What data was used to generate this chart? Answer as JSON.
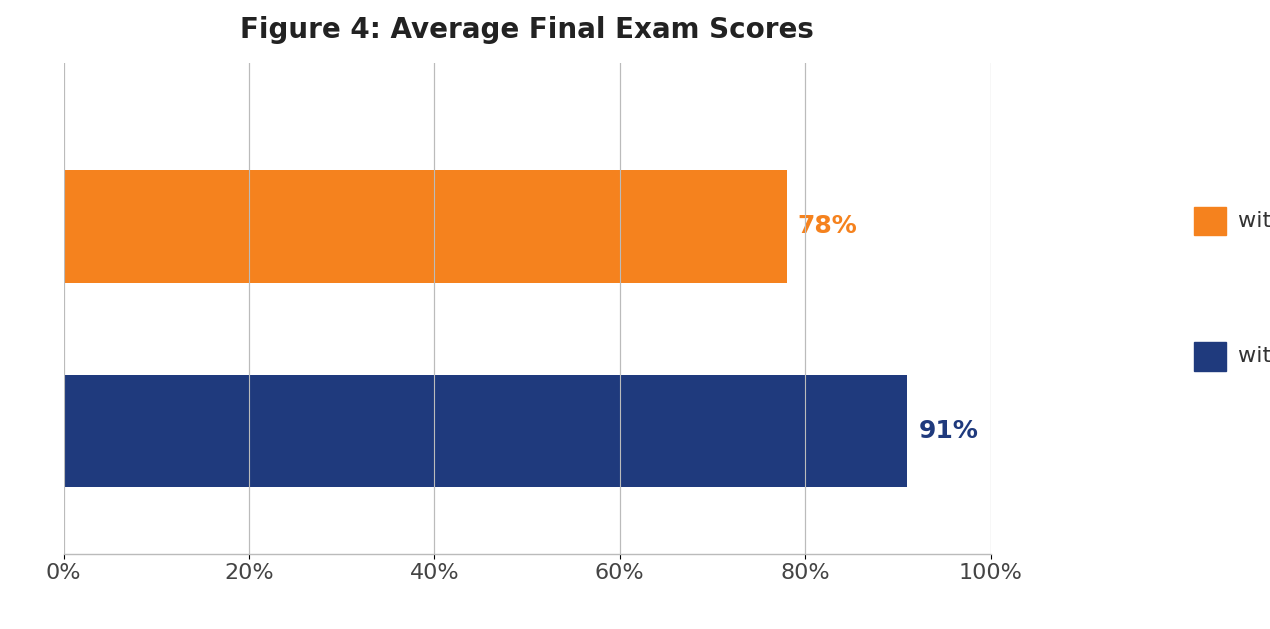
{
  "title": "Figure 4: Average Final Exam Scores",
  "values": [
    78,
    91
  ],
  "bar_colors": [
    "#F5821E",
    "#1F3A7D"
  ],
  "label_colors": [
    "#F5821E",
    "#1F3A7D"
  ],
  "label_texts": [
    "78%",
    "91%"
  ],
  "xlim": [
    0,
    100
  ],
  "xticks": [
    0,
    20,
    40,
    60,
    80,
    100
  ],
  "xticklabels": [
    "0%",
    "20%",
    "40%",
    "60%",
    "80%",
    "100%"
  ],
  "title_fontsize": 20,
  "bar_label_fontsize": 18,
  "tick_fontsize": 16,
  "legend_fontsize": 16,
  "background_color": "#FFFFFF",
  "grid_color": "#BBBBBB",
  "bar_height": 0.55,
  "bar_positions": [
    1,
    0
  ],
  "ylim": [
    -0.6,
    1.8
  ]
}
